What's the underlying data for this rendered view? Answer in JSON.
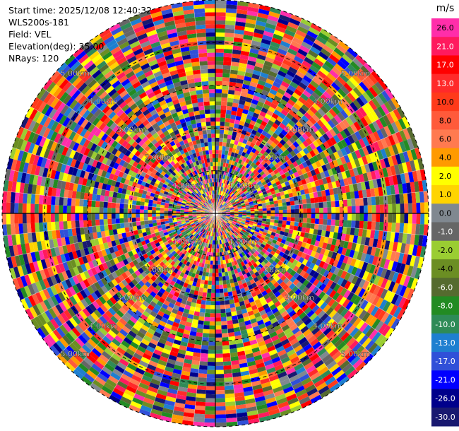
{
  "info": {
    "start_time": "Start time: 2025/12/08 12:40:32",
    "instrument": "WLS200s-181",
    "field": "Field: VEL",
    "elevation": "Elevation(deg): 35.00",
    "nrays": "NRays: 120"
  },
  "chart_data": {
    "type": "heatmap",
    "projection": "polar-ppi",
    "field": "VEL",
    "elevation_deg": 35.0,
    "n_rays": 120,
    "max_range_km": 5.0,
    "range_rings_km": [
      1,
      2,
      3,
      4,
      5
    ],
    "ring_labels": [
      "1.00km",
      "2.00km",
      "3.00km",
      "4.00km",
      "5.00km"
    ],
    "colorbar": {
      "unit": "m/s",
      "ticks": [
        "26.0",
        "21.0",
        "17.0",
        "13.0",
        "10.0",
        "8.0",
        "6.0",
        "4.0",
        "2.0",
        "1.0",
        "0.0",
        "-1.0",
        "-2.0",
        "-4.0",
        "-6.0",
        "-8.0",
        "-10.0",
        "-13.0",
        "-17.0",
        "-21.0",
        "-26.0",
        "-30.0"
      ],
      "segments": [
        {
          "min": 26,
          "max": 30,
          "color": "#ff2eaa"
        },
        {
          "min": 21,
          "max": 26,
          "color": "#ff1a5e"
        },
        {
          "min": 17,
          "max": 21,
          "color": "#ff0000"
        },
        {
          "min": 13,
          "max": 17,
          "color": "#ff2a2a"
        },
        {
          "min": 10,
          "max": 13,
          "color": "#ff3a1a"
        },
        {
          "min": 8,
          "max": 10,
          "color": "#ff5a3a"
        },
        {
          "min": 6,
          "max": 8,
          "color": "#ff7a50"
        },
        {
          "min": 4,
          "max": 6,
          "color": "#ff9a00"
        },
        {
          "min": 2,
          "max": 4,
          "color": "#ffff00"
        },
        {
          "min": 1,
          "max": 2,
          "color": "#ffd400"
        },
        {
          "min": 0,
          "max": 1,
          "color": "#808890"
        },
        {
          "min": -1,
          "max": 0,
          "color": "#666666"
        },
        {
          "min": -2,
          "max": -1,
          "color": "#9acd32"
        },
        {
          "min": -4,
          "max": -2,
          "color": "#6b8e23"
        },
        {
          "min": -6,
          "max": -4,
          "color": "#556b2f"
        },
        {
          "min": -8,
          "max": -6,
          "color": "#228b22"
        },
        {
          "min": -10,
          "max": -8,
          "color": "#2e8b57"
        },
        {
          "min": -13,
          "max": -10,
          "color": "#1e7fd0"
        },
        {
          "min": -17,
          "max": -13,
          "color": "#3050d8"
        },
        {
          "min": -21,
          "max": -17,
          "color": "#0000ff"
        },
        {
          "min": -26,
          "max": -21,
          "color": "#00008b"
        },
        {
          "min": -30,
          "max": -26,
          "color": "#191970"
        }
      ]
    }
  }
}
